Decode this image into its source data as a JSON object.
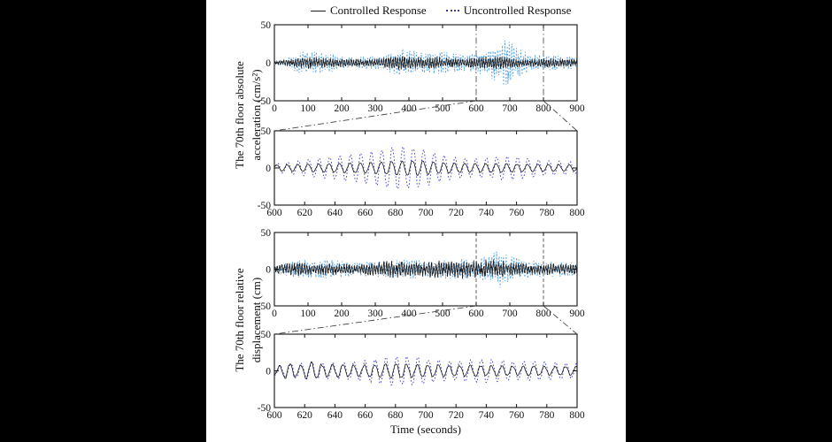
{
  "figure": {
    "xlabel": "Time (seconds)",
    "legend": [
      {
        "label": "Controlled Response",
        "style": "solid",
        "color": "#1a1a1a"
      },
      {
        "label": "Uncontrolled Response",
        "style": "dotted",
        "color": "#3c3c96"
      }
    ],
    "group_labels": [
      {
        "lines": [
          "The 70th floor absolute",
          "acceleration (cm/s²)"
        ]
      },
      {
        "lines": [
          "The 70th floor relative",
          "displacement (cm)"
        ]
      }
    ]
  },
  "chart_data": [
    {
      "type": "line",
      "ylabel": "The 70th floor absolute acceleration (cm/s²)",
      "x": {
        "min": 0,
        "max": 900,
        "ticks": [
          0,
          100,
          200,
          300,
          400,
          500,
          600,
          700,
          800,
          900
        ]
      },
      "y": {
        "min": -50,
        "max": 50,
        "ticks": [
          50,
          0,
          -50
        ]
      },
      "marker_lines": {
        "x": [
          600,
          800
        ],
        "style": "dashdot"
      },
      "render": {
        "mix": [
          0.7,
          0.35,
          0.4
        ],
        "primary_period": 6.9,
        "samples": 700
      },
      "series": [
        {
          "name": "Controlled Response",
          "style": "solid",
          "color": "#1a1a1a",
          "phase": 0.9,
          "amplitude_envelope": [
            [
              0,
              2
            ],
            [
              40,
              4
            ],
            [
              70,
              8
            ],
            [
              100,
              8
            ],
            [
              140,
              6
            ],
            [
              180,
              6
            ],
            [
              220,
              5
            ],
            [
              260,
              5
            ],
            [
              300,
              5
            ],
            [
              340,
              7
            ],
            [
              370,
              9
            ],
            [
              400,
              8
            ],
            [
              440,
              7
            ],
            [
              480,
              8
            ],
            [
              510,
              7
            ],
            [
              550,
              6
            ],
            [
              590,
              6
            ],
            [
              630,
              8
            ],
            [
              670,
              8
            ],
            [
              710,
              6
            ],
            [
              750,
              5
            ],
            [
              800,
              6
            ],
            [
              850,
              5
            ],
            [
              900,
              5
            ]
          ]
        },
        {
          "name": "Uncontrolled Response",
          "style": "dotted",
          "color": "#55a2e6",
          "phase": 0,
          "amplitude_envelope": [
            [
              0,
              2
            ],
            [
              30,
              3
            ],
            [
              60,
              11
            ],
            [
              90,
              15
            ],
            [
              130,
              14
            ],
            [
              170,
              12
            ],
            [
              200,
              8
            ],
            [
              240,
              7
            ],
            [
              280,
              9
            ],
            [
              320,
              8
            ],
            [
              350,
              14
            ],
            [
              380,
              17
            ],
            [
              410,
              16
            ],
            [
              440,
              13
            ],
            [
              470,
              14
            ],
            [
              500,
              15
            ],
            [
              530,
              12
            ],
            [
              560,
              11
            ],
            [
              590,
              12
            ],
            [
              620,
              16
            ],
            [
              650,
              22
            ],
            [
              680,
              30
            ],
            [
              700,
              27
            ],
            [
              720,
              20
            ],
            [
              740,
              15
            ],
            [
              770,
              11
            ],
            [
              800,
              10
            ],
            [
              850,
              9
            ],
            [
              900,
              8
            ]
          ]
        }
      ]
    },
    {
      "type": "line",
      "ylabel": "The 70th floor absolute acceleration (cm/s²)",
      "x": {
        "min": 600,
        "max": 800,
        "ticks": [
          600,
          620,
          640,
          660,
          680,
          700,
          720,
          740,
          760,
          780,
          800
        ]
      },
      "y": {
        "min": -50,
        "max": 50,
        "ticks": [
          50,
          0,
          -50
        ]
      },
      "render": {
        "mix": [
          1,
          0.07,
          0.07
        ],
        "primary_period": 6.9,
        "samples": 420
      },
      "series": [
        {
          "name": "Controlled Response",
          "style": "solid",
          "color": "#1a1a1a",
          "phase": 0.4,
          "amplitude_envelope": [
            [
              600,
              4
            ],
            [
              620,
              5
            ],
            [
              640,
              6
            ],
            [
              660,
              7
            ],
            [
              680,
              9
            ],
            [
              695,
              10
            ],
            [
              710,
              7
            ],
            [
              730,
              6
            ],
            [
              750,
              6
            ],
            [
              770,
              5
            ],
            [
              800,
              4
            ]
          ]
        },
        {
          "name": "Uncontrolled Response",
          "style": "dotted",
          "color": "#4a4cc8",
          "phase": 0,
          "amplitude_envelope": [
            [
              600,
              6
            ],
            [
              610,
              8
            ],
            [
              620,
              11
            ],
            [
              635,
              14
            ],
            [
              650,
              18
            ],
            [
              665,
              22
            ],
            [
              680,
              28
            ],
            [
              690,
              29
            ],
            [
              700,
              24
            ],
            [
              710,
              18
            ],
            [
              720,
              14
            ],
            [
              730,
              12
            ],
            [
              740,
              13
            ],
            [
              750,
              16
            ],
            [
              760,
              15
            ],
            [
              770,
              12
            ],
            [
              780,
              10
            ],
            [
              790,
              9
            ],
            [
              800,
              8
            ]
          ]
        }
      ]
    },
    {
      "type": "line",
      "ylabel": "The 70th floor relative displacement (cm)",
      "x": {
        "min": 0,
        "max": 900,
        "ticks": [
          0,
          100,
          200,
          300,
          400,
          500,
          600,
          700,
          800,
          900
        ]
      },
      "y": {
        "min": -50,
        "max": 50,
        "ticks": [
          50,
          0,
          -50
        ]
      },
      "marker_lines": {
        "x": [
          600,
          800
        ],
        "style": "dashed"
      },
      "render": {
        "mix": [
          0.65,
          0.3,
          0.45
        ],
        "primary_period": 7.4,
        "samples": 700
      },
      "series": [
        {
          "name": "Controlled Response",
          "style": "solid",
          "color": "#1a1a1a",
          "phase": 1.1,
          "amplitude_envelope": [
            [
              0,
              5
            ],
            [
              40,
              8
            ],
            [
              80,
              9
            ],
            [
              120,
              7
            ],
            [
              160,
              8
            ],
            [
              200,
              7
            ],
            [
              250,
              7
            ],
            [
              300,
              9
            ],
            [
              330,
              11
            ],
            [
              360,
              12
            ],
            [
              400,
              9
            ],
            [
              440,
              10
            ],
            [
              480,
              12
            ],
            [
              520,
              10
            ],
            [
              560,
              13
            ],
            [
              600,
              11
            ],
            [
              640,
              14
            ],
            [
              670,
              12
            ],
            [
              700,
              10
            ],
            [
              740,
              8
            ],
            [
              780,
              7
            ],
            [
              820,
              8
            ],
            [
              860,
              7
            ],
            [
              900,
              7
            ]
          ]
        },
        {
          "name": "Uncontrolled Response",
          "style": "dotted",
          "color": "#55a2e6",
          "phase": 0,
          "amplitude_envelope": [
            [
              0,
              4
            ],
            [
              40,
              9
            ],
            [
              80,
              13
            ],
            [
              120,
              11
            ],
            [
              160,
              13
            ],
            [
              200,
              11
            ],
            [
              250,
              9
            ],
            [
              300,
              10
            ],
            [
              350,
              12
            ],
            [
              400,
              13
            ],
            [
              450,
              11
            ],
            [
              500,
              12
            ],
            [
              550,
              14
            ],
            [
              600,
              14
            ],
            [
              630,
              17
            ],
            [
              660,
              24
            ],
            [
              680,
              26
            ],
            [
              700,
              19
            ],
            [
              730,
              14
            ],
            [
              760,
              12
            ],
            [
              800,
              10
            ],
            [
              850,
              10
            ],
            [
              900,
              8
            ]
          ]
        }
      ]
    },
    {
      "type": "line",
      "xlabel": "Time (seconds)",
      "ylabel": "The 70th floor relative displacement (cm)",
      "x": {
        "min": 600,
        "max": 800,
        "ticks": [
          600,
          620,
          640,
          660,
          680,
          700,
          720,
          740,
          760,
          780,
          800
        ]
      },
      "y": {
        "min": -50,
        "max": 50,
        "ticks": [
          50,
          0,
          -50
        ]
      },
      "render": {
        "mix": [
          1,
          0.12,
          0.1
        ],
        "primary_period": 7.0,
        "samples": 420
      },
      "series": [
        {
          "name": "Controlled Response",
          "style": "solid",
          "color": "#1a1a1a",
          "phase": 0.35,
          "amplitude_envelope": [
            [
              600,
              5
            ],
            [
              608,
              11
            ],
            [
              616,
              7
            ],
            [
              624,
              13
            ],
            [
              632,
              8
            ],
            [
              640,
              9
            ],
            [
              650,
              8
            ],
            [
              660,
              8
            ],
            [
              670,
              9
            ],
            [
              680,
              10
            ],
            [
              690,
              9
            ],
            [
              700,
              8
            ],
            [
              710,
              8
            ],
            [
              720,
              7
            ],
            [
              730,
              8
            ],
            [
              740,
              7
            ],
            [
              750,
              7
            ],
            [
              760,
              6
            ],
            [
              770,
              7
            ],
            [
              780,
              6
            ],
            [
              790,
              6
            ],
            [
              800,
              6
            ]
          ]
        },
        {
          "name": "Uncontrolled Response",
          "style": "dotted",
          "color": "#4a4cc8",
          "phase": 0,
          "amplitude_envelope": [
            [
              600,
              6
            ],
            [
              610,
              9
            ],
            [
              620,
              11
            ],
            [
              630,
              12
            ],
            [
              640,
              10
            ],
            [
              650,
              12
            ],
            [
              660,
              14
            ],
            [
              670,
              17
            ],
            [
              680,
              20
            ],
            [
              690,
              19
            ],
            [
              700,
              17
            ],
            [
              710,
              14
            ],
            [
              720,
              13
            ],
            [
              730,
              15
            ],
            [
              740,
              16
            ],
            [
              750,
              14
            ],
            [
              760,
              12
            ],
            [
              770,
              13
            ],
            [
              780,
              12
            ],
            [
              790,
              11
            ],
            [
              800,
              10
            ]
          ]
        }
      ]
    }
  ]
}
